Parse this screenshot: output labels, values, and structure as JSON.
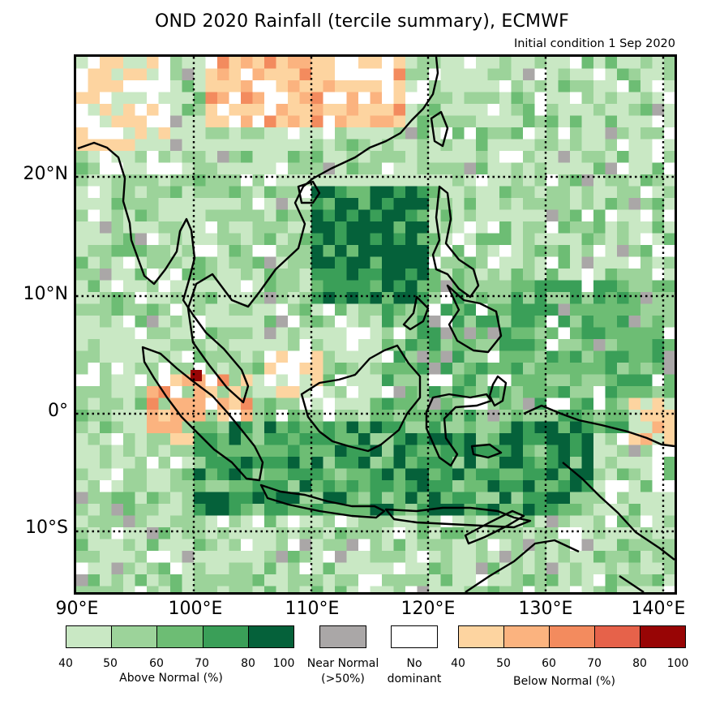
{
  "title": "OND 2020 Rainfall (tercile summary), ECMWF",
  "subtitle": "Initial condition 1 Sep 2020",
  "axes": {
    "lat_labels": [
      "20°N",
      "10°N",
      "0°",
      "10°S"
    ],
    "lon_labels": [
      "90°E",
      "100°E",
      "110°E",
      "120°E",
      "130°E",
      "140°E"
    ]
  },
  "legend": {
    "above_normal": {
      "label": "Above Normal (%)",
      "ticks": [
        "40",
        "50",
        "60",
        "70",
        "80",
        "100"
      ],
      "colors": [
        "#c9e8c4",
        "#9cd39a",
        "#6dbd74",
        "#3a9f58",
        "#05613a"
      ]
    },
    "near_normal": {
      "label_line1": "Near Normal",
      "label_line2": "(>50%)",
      "color": "#aaa7a7"
    },
    "no_dominant": {
      "label_line1": "No",
      "label_line2": "dominant",
      "color": "#ffffff"
    },
    "below_normal": {
      "label": "Below Normal (%)",
      "ticks": [
        "40",
        "50",
        "60",
        "70",
        "80",
        "100"
      ],
      "colors": [
        "#fdd4a0",
        "#fbb37f",
        "#f38b5e",
        "#e6624a",
        "#980505"
      ]
    }
  },
  "map_data": {
    "lon_range": [
      90,
      141
    ],
    "lat_range": [
      -15.5,
      30
    ],
    "region_categories": [
      {
        "name": "indochina-north",
        "category": "below_normal_40_50"
      },
      {
        "name": "south-china-sea",
        "category": "above_normal_80_100"
      },
      {
        "name": "philippines",
        "category": "above_normal_60_70"
      },
      {
        "name": "maritime-continent",
        "category": "above_normal_70_80"
      },
      {
        "name": "andaman-sea",
        "category": "above_normal_40_50"
      },
      {
        "name": "sumatra-north",
        "category": "below_normal_50_60"
      },
      {
        "name": "new-guinea-east",
        "category": "below_normal_40_50"
      }
    ]
  }
}
